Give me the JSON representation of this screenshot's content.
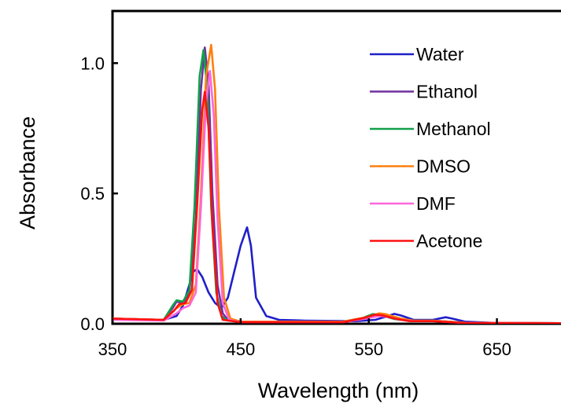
{
  "chart_data": {
    "type": "line",
    "title": "",
    "xlabel": "Wavelength  (nm)",
    "ylabel": "Absorbance",
    "xlim": [
      350,
      700
    ],
    "ylim": [
      0,
      1.2
    ],
    "xticks": [
      350,
      450,
      550,
      650
    ],
    "xtick_labels": [
      "350",
      "450",
      "550",
      "650"
    ],
    "yticks": [
      0.0,
      0.5,
      1.0
    ],
    "ytick_labels": [
      "0.0",
      "0.5",
      "1.0"
    ],
    "grid": false,
    "legend_position": "top-right",
    "series": [
      {
        "name": "Water",
        "color": "#1f1fc8",
        "points": [
          [
            350,
            0.02
          ],
          [
            370,
            0.015
          ],
          [
            390,
            0.015
          ],
          [
            400,
            0.03
          ],
          [
            405,
            0.07
          ],
          [
            410,
            0.15
          ],
          [
            413,
            0.2
          ],
          [
            416,
            0.21
          ],
          [
            420,
            0.18
          ],
          [
            425,
            0.12
          ],
          [
            430,
            0.08
          ],
          [
            435,
            0.06
          ],
          [
            440,
            0.1
          ],
          [
            445,
            0.2
          ],
          [
            450,
            0.3
          ],
          [
            455,
            0.37
          ],
          [
            458,
            0.3
          ],
          [
            462,
            0.1
          ],
          [
            470,
            0.03
          ],
          [
            480,
            0.015
          ],
          [
            500,
            0.012
          ],
          [
            540,
            0.01
          ],
          [
            555,
            0.015
          ],
          [
            565,
            0.03
          ],
          [
            570,
            0.038
          ],
          [
            575,
            0.032
          ],
          [
            585,
            0.015
          ],
          [
            600,
            0.015
          ],
          [
            610,
            0.025
          ],
          [
            615,
            0.02
          ],
          [
            625,
            0.008
          ],
          [
            650,
            0.003
          ],
          [
            700,
            0.002
          ]
        ]
      },
      {
        "name": "Ethanol",
        "color": "#7030a0",
        "points": [
          [
            350,
            0.02
          ],
          [
            390,
            0.015
          ],
          [
            397,
            0.06
          ],
          [
            400,
            0.085
          ],
          [
            405,
            0.08
          ],
          [
            410,
            0.12
          ],
          [
            415,
            0.4
          ],
          [
            419,
            0.9
          ],
          [
            422,
            1.06
          ],
          [
            425,
            0.92
          ],
          [
            428,
            0.5
          ],
          [
            432,
            0.15
          ],
          [
            436,
            0.04
          ],
          [
            440,
            0.015
          ],
          [
            450,
            0.008
          ],
          [
            530,
            0.008
          ],
          [
            545,
            0.02
          ],
          [
            555,
            0.035
          ],
          [
            560,
            0.035
          ],
          [
            570,
            0.02
          ],
          [
            580,
            0.012
          ],
          [
            600,
            0.012
          ],
          [
            625,
            0.004
          ],
          [
            700,
            0.002
          ]
        ]
      },
      {
        "name": "Methanol",
        "color": "#13a04a",
        "points": [
          [
            350,
            0.02
          ],
          [
            390,
            0.015
          ],
          [
            397,
            0.07
          ],
          [
            400,
            0.09
          ],
          [
            405,
            0.085
          ],
          [
            410,
            0.13
          ],
          [
            414,
            0.45
          ],
          [
            418,
            0.95
          ],
          [
            421,
            1.05
          ],
          [
            424,
            0.9
          ],
          [
            427,
            0.45
          ],
          [
            431,
            0.12
          ],
          [
            435,
            0.03
          ],
          [
            440,
            0.012
          ],
          [
            450,
            0.008
          ],
          [
            530,
            0.008
          ],
          [
            545,
            0.022
          ],
          [
            553,
            0.037
          ],
          [
            558,
            0.035
          ],
          [
            570,
            0.018
          ],
          [
            580,
            0.012
          ],
          [
            600,
            0.012
          ],
          [
            625,
            0.004
          ],
          [
            700,
            0.002
          ]
        ]
      },
      {
        "name": "DMSO",
        "color": "#ff7f0e",
        "points": [
          [
            350,
            0.02
          ],
          [
            390,
            0.015
          ],
          [
            400,
            0.06
          ],
          [
            405,
            0.075
          ],
          [
            410,
            0.08
          ],
          [
            415,
            0.15
          ],
          [
            419,
            0.5
          ],
          [
            423,
            0.95
          ],
          [
            427,
            1.07
          ],
          [
            430,
            0.9
          ],
          [
            433,
            0.45
          ],
          [
            437,
            0.1
          ],
          [
            442,
            0.02
          ],
          [
            450,
            0.008
          ],
          [
            530,
            0.008
          ],
          [
            548,
            0.025
          ],
          [
            558,
            0.04
          ],
          [
            563,
            0.037
          ],
          [
            575,
            0.02
          ],
          [
            585,
            0.012
          ],
          [
            600,
            0.012
          ],
          [
            625,
            0.004
          ],
          [
            700,
            0.002
          ]
        ]
      },
      {
        "name": "DMF",
        "color": "#ff66dd",
        "points": [
          [
            350,
            0.015
          ],
          [
            390,
            0.012
          ],
          [
            400,
            0.04
          ],
          [
            405,
            0.06
          ],
          [
            410,
            0.07
          ],
          [
            415,
            0.12
          ],
          [
            419,
            0.45
          ],
          [
            423,
            0.85
          ],
          [
            426,
            0.97
          ],
          [
            429,
            0.8
          ],
          [
            432,
            0.4
          ],
          [
            436,
            0.08
          ],
          [
            441,
            0.015
          ],
          [
            450,
            0.006
          ],
          [
            530,
            0.006
          ],
          [
            548,
            0.02
          ],
          [
            558,
            0.03
          ],
          [
            563,
            0.028
          ],
          [
            575,
            0.015
          ],
          [
            585,
            0.01
          ],
          [
            600,
            0.01
          ],
          [
            625,
            0.003
          ],
          [
            700,
            0.002
          ]
        ]
      },
      {
        "name": "Acetone",
        "color": "#ff1010",
        "points": [
          [
            350,
            0.02
          ],
          [
            390,
            0.015
          ],
          [
            398,
            0.05
          ],
          [
            402,
            0.075
          ],
          [
            407,
            0.08
          ],
          [
            412,
            0.13
          ],
          [
            416,
            0.45
          ],
          [
            420,
            0.82
          ],
          [
            422,
            0.89
          ],
          [
            425,
            0.75
          ],
          [
            428,
            0.38
          ],
          [
            432,
            0.08
          ],
          [
            436,
            0.015
          ],
          [
            450,
            0.006
          ],
          [
            530,
            0.006
          ],
          [
            546,
            0.022
          ],
          [
            555,
            0.035
          ],
          [
            560,
            0.033
          ],
          [
            572,
            0.018
          ],
          [
            582,
            0.01
          ],
          [
            600,
            0.01
          ],
          [
            625,
            0.003
          ],
          [
            700,
            0.002
          ]
        ]
      }
    ]
  }
}
